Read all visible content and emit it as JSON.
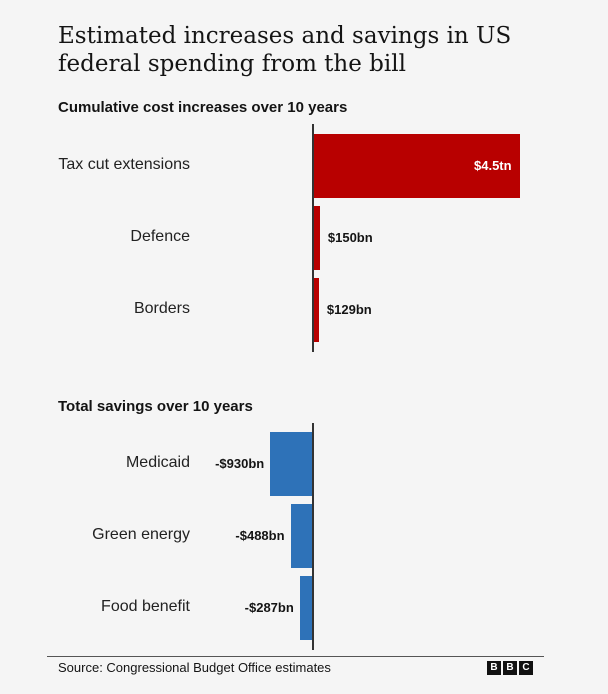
{
  "title": "Estimated increases and savings in US federal spending from the bill",
  "source": "Source: Congressional Budget Office estimates",
  "logo": [
    "B",
    "B",
    "C"
  ],
  "colors": {
    "increase": "#b80000",
    "saving": "#2e72b8",
    "axis": "#333333"
  },
  "chart_data": [
    {
      "type": "bar",
      "orientation": "horizontal",
      "title": "Cumulative cost increases over 10 years",
      "unit": "US dollars",
      "categories": [
        "Tax cut extensions",
        "Defence",
        "Borders"
      ],
      "values": [
        4500,
        150,
        129
      ],
      "value_labels": [
        "$4.5tn",
        "$150bn",
        "$129bn"
      ]
    },
    {
      "type": "bar",
      "orientation": "horizontal",
      "title": "Total savings over 10 years",
      "unit": "US dollars",
      "categories": [
        "Medicaid",
        "Green energy",
        "Food benefit"
      ],
      "values": [
        -930,
        -488,
        -287
      ],
      "value_labels": [
        "-$930bn",
        "-$488bn",
        "-$287bn"
      ]
    }
  ]
}
